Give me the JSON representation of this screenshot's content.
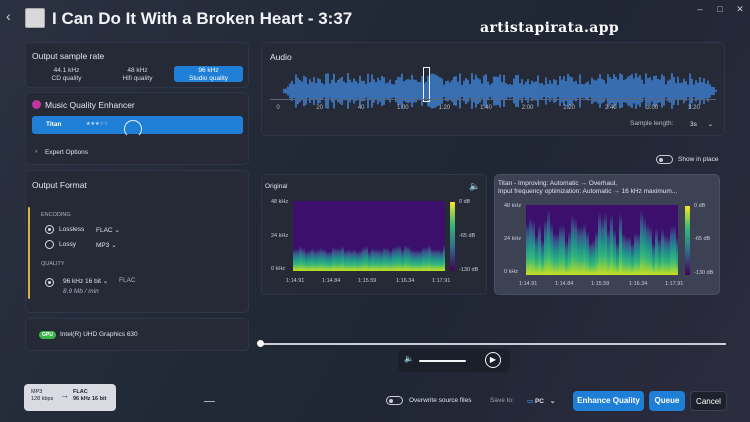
{
  "title": "I Can Do It With a Broken Heart - 3:37",
  "watermark": "artistapirata.app",
  "window_controls": {
    "minimize": "–",
    "maximize": "□",
    "close": "✕"
  },
  "sample_rate": {
    "heading": "Output sample rate",
    "options": [
      {
        "rate": "44.1 kHz",
        "label": "CD quality"
      },
      {
        "rate": "48 kHz",
        "label": "Hifi quality"
      },
      {
        "rate": "96 kHz",
        "label": "Studio quality"
      }
    ],
    "selected": 2
  },
  "enhancer": {
    "heading": "Music Quality Enhancer",
    "model": "Titan",
    "stars": "★★★☆☆",
    "expert": "Expert Options"
  },
  "format": {
    "heading": "Output Format",
    "encoding_label": "ENCODING",
    "lossless": "Lossless",
    "lossless_codec": "FLAC",
    "lossy": "Lossy",
    "lossy_codec": "MP3",
    "quality_label": "QUALITY",
    "quality": "96 kHz 16 bit",
    "quality_codec": "FLAC",
    "size": "8.9 Mb / min"
  },
  "gpu": {
    "badge": "GPU",
    "name": "Intel(R) UHD Graphics 630"
  },
  "audio": {
    "heading": "Audio",
    "ticks": [
      "0",
      "20",
      "40",
      "1:00",
      "1:20",
      "1:40",
      "2:00",
      "2:20",
      "2:40",
      "3:00",
      "3:20"
    ],
    "sample_length_label": "Sample length:",
    "sample_length": "3s"
  },
  "show_in_place": "Show in place",
  "original": {
    "heading": "Original",
    "y_labels": [
      "48 kHz",
      "24 kHz",
      "0 kHz"
    ],
    "x_labels": [
      "1:14.91",
      "1:14.84",
      "1:15.59",
      "1:16.34",
      "1:17.91"
    ],
    "scale": [
      "0 dB",
      "-65 dB",
      "-130 dB"
    ]
  },
  "enhanced": {
    "heading": "Titan - Improving: Automatic → Overhaul,",
    "heading2": "Input frequency optimization: Automatic → 16 kHz maximum...",
    "y_labels": [
      "48 kHz",
      "24 kHz",
      "0 kHz"
    ],
    "x_labels": [
      "1:14.91",
      "1:14.84",
      "1:15.59",
      "1:16.34",
      "1:17.91"
    ],
    "scale": [
      "0 dB",
      "-65 dB",
      "-130 dB"
    ]
  },
  "conversion": {
    "from_codec": "MP3",
    "from_detail": "128 kbps",
    "to_codec": "FLAC",
    "to_detail": "96 kHz 16 bit"
  },
  "overwrite": "Overwrite source files",
  "save_to_label": "Save to:",
  "save_to": "PC",
  "buttons": {
    "enhance": "Enhance Quality",
    "queue": "Queue",
    "cancel": "Cancel"
  },
  "colors": {
    "accent": "#1f7fd6",
    "gpu_badge": "#3bb54a",
    "waveform": "#3d7fd1"
  }
}
